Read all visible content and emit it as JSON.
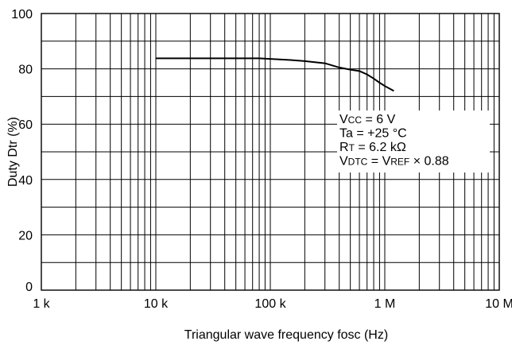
{
  "chart_data": {
    "type": "line",
    "xscale": "log",
    "xlim": [
      1000,
      10000000
    ],
    "ylim": [
      0,
      100
    ],
    "xlabel": "Triangular wave frequency fosc (Hz)",
    "ylabel": "Duty Dtr (%)",
    "grid": true,
    "x_tick_values": [
      1000,
      10000,
      100000,
      1000000,
      10000000
    ],
    "x_tick_labels": [
      "1 k",
      "10 k",
      "100 k",
      "1 M",
      "10 M"
    ],
    "y_tick_values": [
      0,
      20,
      40,
      60,
      80,
      100
    ],
    "y_tick_labels": [
      "0",
      "20",
      "40",
      "60",
      "80",
      "100"
    ],
    "series": [
      {
        "x": [
          10000,
          20000,
          50000,
          80000,
          100000,
          150000,
          200000,
          300000,
          400000,
          500000,
          600000,
          700000,
          800000,
          900000,
          1000000,
          1200000
        ],
        "y": [
          83.8,
          83.8,
          83.8,
          83.8,
          83.6,
          83.2,
          82.8,
          82.0,
          80.5,
          79.7,
          79.2,
          78.0,
          76.5,
          75.0,
          73.8,
          72.0
        ]
      }
    ],
    "annotation_lines": [
      [
        {
          "t": "V"
        },
        {
          "t": "CC",
          "sub": true
        },
        {
          "t": " = 6 V"
        }
      ],
      [
        {
          "t": "Ta = +25 °C"
        }
      ],
      [
        {
          "t": "R"
        },
        {
          "t": "T",
          "sub": true
        },
        {
          "t": " = 6.2 kΩ"
        }
      ],
      [
        {
          "t": "V"
        },
        {
          "t": "DTC",
          "sub": true
        },
        {
          "t": " = V"
        },
        {
          "t": "REF",
          "sub": true
        },
        {
          "t": " × 0.88"
        }
      ]
    ]
  }
}
